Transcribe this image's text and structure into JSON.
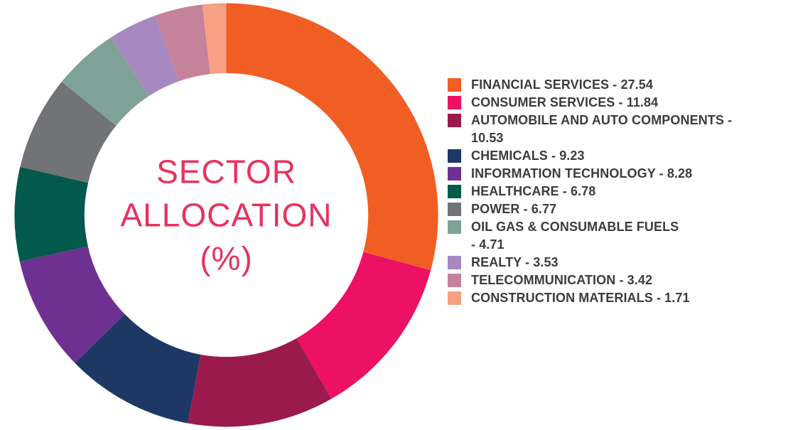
{
  "chart_data": {
    "type": "pie",
    "subtype": "donut",
    "title": "SECTOR ALLOCATION (%)",
    "unit": "%",
    "legend_position": "right",
    "start_angle_deg": 0,
    "direction": "clockwise",
    "inner_radius_ratio": 0.67,
    "categories": [
      "FINANCIAL SERVICES",
      "CONSUMER SERVICES",
      "AUTOMOBILE AND AUTO COMPONENTS",
      "CHEMICALS",
      "INFORMATION TECHNOLOGY",
      "HEALTHCARE",
      "POWER",
      "OIL GAS & CONSUMABLE FUELS",
      "REALTY",
      "TELECOMMUNICATION",
      "CONSTRUCTION MATERIALS"
    ],
    "values": [
      27.54,
      11.84,
      10.53,
      9.23,
      8.28,
      6.78,
      6.77,
      4.71,
      3.53,
      3.42,
      1.71
    ],
    "colors": [
      "#F15E24",
      "#EC1164",
      "#9B1A4E",
      "#1D3865",
      "#6F3191",
      "#015A4B",
      "#717376",
      "#7FA298",
      "#A689C0",
      "#C4829B",
      "#F7A083"
    ]
  },
  "donut": {
    "center_label_lines": [
      "SECTOR",
      "ALLOCATION",
      "(%)"
    ],
    "center_label_color": "#E8325F"
  },
  "legend": {
    "text_color": "#3C3C3C",
    "items": [
      {
        "label": "FINANCIAL SERVICES",
        "value": 27.54,
        "color": "#F15E24",
        "lines": [
          "FINANCIAL SERVICES - 27.54"
        ]
      },
      {
        "label": "CONSUMER SERVICES",
        "value": 11.84,
        "color": "#EC1164",
        "lines": [
          "CONSUMER SERVICES - 11.84"
        ]
      },
      {
        "label": "AUTOMOBILE AND AUTO COMPONENTS",
        "value": 10.53,
        "color": "#9B1A4E",
        "lines": [
          "AUTOMOBILE AND AUTO COMPONENTS -",
          "10.53"
        ]
      },
      {
        "label": "CHEMICALS",
        "value": 9.23,
        "color": "#1D3865",
        "lines": [
          "CHEMICALS - 9.23"
        ]
      },
      {
        "label": "INFORMATION TECHNOLOGY",
        "value": 8.28,
        "color": "#6F3191",
        "lines": [
          "INFORMATION TECHNOLOGY - 8.28"
        ]
      },
      {
        "label": "HEALTHCARE",
        "value": 6.78,
        "color": "#015A4B",
        "lines": [
          "HEALTHCARE - 6.78"
        ]
      },
      {
        "label": "POWER",
        "value": 6.77,
        "color": "#717376",
        "lines": [
          "POWER - 6.77"
        ]
      },
      {
        "label": "OIL GAS & CONSUMABLE FUELS",
        "value": 4.71,
        "color": "#7FA298",
        "lines": [
          "OIL GAS & CONSUMABLE FUELS",
          "- 4.71"
        ]
      },
      {
        "label": "REALTY",
        "value": 3.53,
        "color": "#A689C0",
        "lines": [
          "REALTY - 3.53"
        ]
      },
      {
        "label": "TELECOMMUNICATION",
        "value": 3.42,
        "color": "#C4829B",
        "lines": [
          "TELECOMMUNICATION - 3.42"
        ]
      },
      {
        "label": "CONSTRUCTION MATERIALS",
        "value": 1.71,
        "color": "#F7A083",
        "lines": [
          "CONSTRUCTION MATERIALS - 1.71"
        ]
      }
    ]
  }
}
